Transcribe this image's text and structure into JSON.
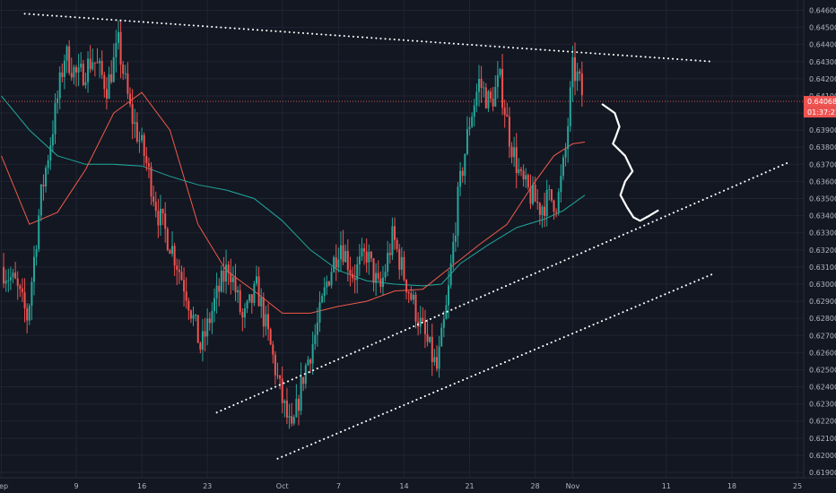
{
  "chart_data": {
    "type": "candlestick",
    "y_axis": {
      "range": [
        0.6185,
        0.6465
      ],
      "ticks": [
        "0.64600",
        "0.64500",
        "0.64400",
        "0.64300",
        "0.64200",
        "0.64100",
        "0.64000",
        "0.63900",
        "0.63800",
        "0.63700",
        "0.63600",
        "0.63500",
        "0.63400",
        "0.63300",
        "0.63200",
        "0.63100",
        "0.63000",
        "0.62900",
        "0.62800",
        "0.62700",
        "0.62600",
        "0.62500",
        "0.62400",
        "0.62300",
        "0.62200",
        "0.62100",
        "0.62000",
        "0.61900"
      ]
    },
    "x_axis": {
      "ticks": [
        {
          "label": "Sep",
          "day": 1
        },
        {
          "label": "9",
          "day": 9
        },
        {
          "label": "16",
          "day": 16
        },
        {
          "label": "23",
          "day": 23
        },
        {
          "label": "Oct",
          "day": 31
        },
        {
          "label": "7",
          "day": 37
        },
        {
          "label": "14",
          "day": 44
        },
        {
          "label": "21",
          "day": 51
        },
        {
          "label": "28",
          "day": 58
        },
        {
          "label": "Nov",
          "day": 62
        },
        {
          "label": "11",
          "day": 72
        },
        {
          "label": "18",
          "day": 79
        },
        {
          "label": "25",
          "day": 86
        }
      ]
    },
    "last_price": {
      "value": 0.64068,
      "label": "0.64068",
      "countdown": "01:37:21"
    },
    "colors": {
      "up": "#26a69a",
      "down": "#ef5350",
      "ma_fast": "#f05a4a",
      "ma_slow": "#1fa89a",
      "background": "#131722",
      "grid": "#1f2433",
      "annotation": "#ffffff"
    },
    "price_path": [
      [
        1,
        0.631
      ],
      [
        2.5,
        0.63
      ],
      [
        3.8,
        0.628
      ],
      [
        5.2,
        0.635
      ],
      [
        6.6,
        0.6395
      ],
      [
        7.8,
        0.6435
      ],
      [
        9.2,
        0.642
      ],
      [
        10.8,
        0.6432
      ],
      [
        12.3,
        0.6415
      ],
      [
        13.5,
        0.644
      ],
      [
        14.8,
        0.64
      ],
      [
        16.3,
        0.6375
      ],
      [
        17.8,
        0.634
      ],
      [
        19.3,
        0.632
      ],
      [
        20.8,
        0.6295
      ],
      [
        22.3,
        0.6262
      ],
      [
        23.8,
        0.629
      ],
      [
        25.3,
        0.6312
      ],
      [
        26.8,
        0.6278
      ],
      [
        28.3,
        0.6298
      ],
      [
        29.8,
        0.6262
      ],
      [
        31.0,
        0.6232
      ],
      [
        32.0,
        0.6212
      ],
      [
        33.3,
        0.6248
      ],
      [
        34.6,
        0.6272
      ],
      [
        35.8,
        0.6302
      ],
      [
        37.2,
        0.6325
      ],
      [
        38.6,
        0.6305
      ],
      [
        40.0,
        0.6318
      ],
      [
        41.4,
        0.6295
      ],
      [
        42.8,
        0.6328
      ],
      [
        44.0,
        0.6305
      ],
      [
        45.5,
        0.628
      ],
      [
        46.7,
        0.6262
      ],
      [
        47.5,
        0.625
      ],
      [
        48.6,
        0.6288
      ],
      [
        49.8,
        0.6352
      ],
      [
        51.0,
        0.6395
      ],
      [
        52.0,
        0.6418
      ],
      [
        53.2,
        0.6405
      ],
      [
        54.2,
        0.642
      ],
      [
        55.3,
        0.6385
      ],
      [
        56.5,
        0.636
      ],
      [
        57.5,
        0.6352
      ],
      [
        58.5,
        0.6345
      ],
      [
        59.5,
        0.635
      ],
      [
        60.4,
        0.6348
      ],
      [
        61.2,
        0.6375
      ],
      [
        62.0,
        0.6425
      ],
      [
        62.6,
        0.642
      ],
      [
        63.2,
        0.6407
      ]
    ],
    "ma_fast_path": [
      [
        1,
        0.6375
      ],
      [
        4,
        0.6335
      ],
      [
        7,
        0.6342
      ],
      [
        10,
        0.6367
      ],
      [
        13,
        0.64
      ],
      [
        16,
        0.6412
      ],
      [
        19,
        0.639
      ],
      [
        22,
        0.6335
      ],
      [
        25,
        0.6308
      ],
      [
        28,
        0.6296
      ],
      [
        31,
        0.6283
      ],
      [
        34,
        0.6283
      ],
      [
        37,
        0.6287
      ],
      [
        40,
        0.629
      ],
      [
        43,
        0.6296
      ],
      [
        46,
        0.6297
      ],
      [
        49,
        0.631
      ],
      [
        52,
        0.6323
      ],
      [
        55,
        0.6335
      ],
      [
        58,
        0.636
      ],
      [
        60,
        0.6375
      ],
      [
        62,
        0.6382
      ],
      [
        63.3,
        0.6383
      ]
    ],
    "ma_slow_path": [
      [
        1,
        0.641
      ],
      [
        4,
        0.639
      ],
      [
        7,
        0.6375
      ],
      [
        10,
        0.637
      ],
      [
        13,
        0.637
      ],
      [
        16,
        0.6369
      ],
      [
        19,
        0.6363
      ],
      [
        22,
        0.6358
      ],
      [
        25,
        0.6355
      ],
      [
        28,
        0.635
      ],
      [
        31,
        0.6337
      ],
      [
        34,
        0.632
      ],
      [
        37,
        0.6308
      ],
      [
        40,
        0.6302
      ],
      [
        43,
        0.63
      ],
      [
        46,
        0.6299
      ],
      [
        48,
        0.63
      ],
      [
        50,
        0.6312
      ],
      [
        53,
        0.6323
      ],
      [
        56,
        0.6333
      ],
      [
        59,
        0.6338
      ],
      [
        61,
        0.6343
      ],
      [
        63.3,
        0.6352
      ]
    ],
    "trendlines": [
      {
        "style": "dotted",
        "points": [
          [
            3.5,
            0.6458
          ],
          [
            77,
            0.643
          ]
        ]
      },
      {
        "style": "dotted",
        "points": [
          [
            24,
            0.6225
          ],
          [
            85,
            0.6371
          ]
        ]
      },
      {
        "style": "dotted",
        "points": [
          [
            30.5,
            0.6198
          ],
          [
            77,
            0.6306
          ]
        ]
      }
    ],
    "annotation": {
      "type": "freehand-squiggle",
      "points": [
        [
          65.2,
          0.6405
        ],
        [
          66.5,
          0.64
        ],
        [
          67.0,
          0.6392
        ],
        [
          66.6,
          0.6386
        ],
        [
          66.3,
          0.6382
        ],
        [
          67.6,
          0.6375
        ],
        [
          68.4,
          0.6366
        ],
        [
          67.6,
          0.636
        ],
        [
          67.1,
          0.6352
        ],
        [
          67.8,
          0.6345
        ],
        [
          68.5,
          0.6339
        ],
        [
          69.2,
          0.6337
        ],
        [
          70.2,
          0.634
        ],
        [
          71.1,
          0.6343
        ]
      ]
    }
  }
}
